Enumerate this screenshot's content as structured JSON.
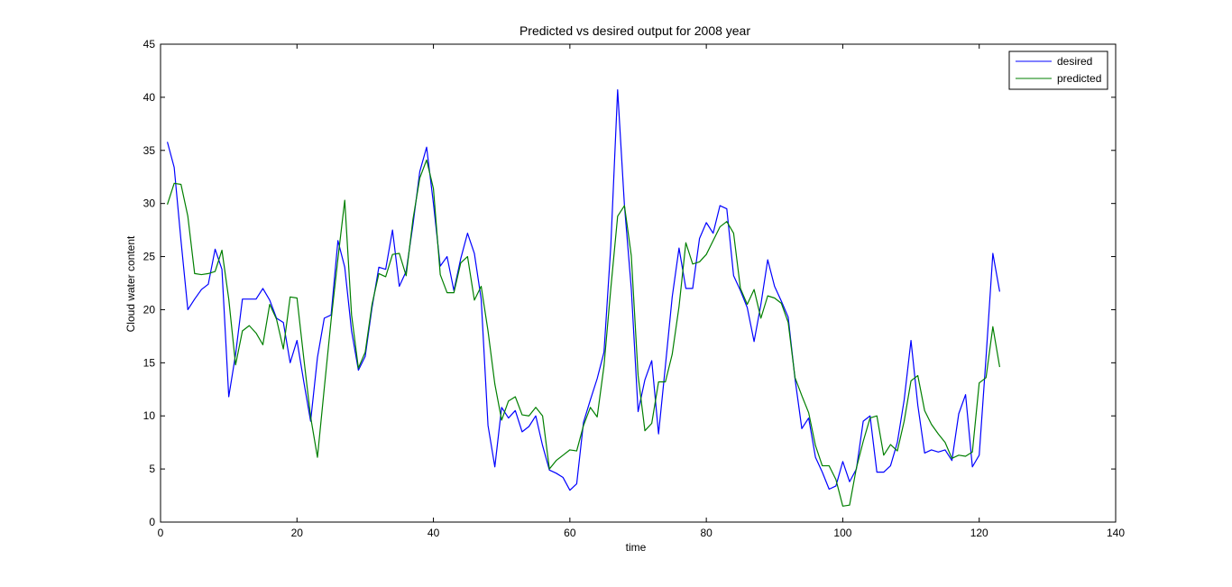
{
  "chart_data": {
    "type": "line",
    "title": "Predicted vs desired output for 2008 year",
    "xlabel": "time",
    "ylabel": "Cloud water content",
    "xlim": [
      0,
      140
    ],
    "ylim": [
      0,
      45
    ],
    "xticks": [
      0,
      20,
      40,
      60,
      80,
      100,
      120,
      140
    ],
    "yticks": [
      0,
      5,
      10,
      15,
      20,
      25,
      30,
      35,
      40,
      45
    ],
    "grid": false,
    "legend_position": "top-right",
    "series": [
      {
        "name": "desired",
        "color": "#0000ff",
        "x_start": 1,
        "values": [
          35.8,
          33.4,
          26.5,
          20.0,
          21.0,
          21.9,
          22.4,
          25.7,
          23.8,
          11.8,
          15.8,
          21.0,
          21.0,
          21.0,
          22.0,
          20.9,
          19.2,
          18.8,
          15.0,
          17.1,
          13.2,
          9.5,
          15.5,
          19.2,
          19.5,
          26.5,
          24.0,
          18.0,
          14.3,
          15.6,
          20.2,
          24.0,
          23.8,
          27.5,
          22.2,
          23.6,
          28.0,
          33.0,
          35.3,
          30.0,
          24.1,
          25.0,
          21.8,
          24.8,
          27.2,
          25.3,
          21.0,
          9.1,
          5.2,
          10.8,
          9.8,
          10.5,
          8.5,
          9.0,
          10.0,
          7.2,
          4.9,
          4.6,
          4.2,
          3.0,
          3.6,
          9.4,
          11.5,
          13.5,
          16.0,
          26.0,
          40.7,
          29.8,
          22.0,
          10.4,
          13.4,
          15.2,
          8.3,
          14.7,
          21.2,
          25.8,
          22.0,
          22.0,
          26.7,
          28.2,
          27.2,
          29.8,
          29.5,
          23.2,
          21.8,
          20.2,
          17.0,
          20.5,
          24.7,
          22.2,
          20.8,
          19.3,
          13.5,
          8.8,
          9.8,
          6.1,
          4.7,
          3.1,
          3.4,
          5.7,
          3.8,
          5.0,
          9.5,
          10.0,
          4.7,
          4.7,
          5.3,
          7.5,
          11.5,
          17.1,
          11.0,
          6.5,
          6.8,
          6.6,
          6.8,
          5.8,
          10.2,
          12.0,
          5.2,
          6.3,
          15.5,
          25.3,
          21.7
        ]
      },
      {
        "name": "predicted",
        "color": "#007f00",
        "x_start": 1,
        "values": [
          29.9,
          31.9,
          31.8,
          28.8,
          23.4,
          23.3,
          23.4,
          23.6,
          25.6,
          21.0,
          14.8,
          18.0,
          18.5,
          17.8,
          16.7,
          20.5,
          19.1,
          16.3,
          21.2,
          21.1,
          15.4,
          9.9,
          6.1,
          12.6,
          19.0,
          24.8,
          30.3,
          19.5,
          14.5,
          16.0,
          20.5,
          23.4,
          23.1,
          25.2,
          25.3,
          23.2,
          28.5,
          32.4,
          34.1,
          31.4,
          23.3,
          21.6,
          21.6,
          24.4,
          25.0,
          20.9,
          22.2,
          18.0,
          13.0,
          9.6,
          11.4,
          11.8,
          10.1,
          10.0,
          10.8,
          10.0,
          5.0,
          5.8,
          6.3,
          6.8,
          6.7,
          9.1,
          10.8,
          9.9,
          14.7,
          22.0,
          28.8,
          29.8,
          25.1,
          13.8,
          8.6,
          9.3,
          13.2,
          13.2,
          15.8,
          20.3,
          26.3,
          24.3,
          24.5,
          25.2,
          26.5,
          27.8,
          28.3,
          27.2,
          22.0,
          20.5,
          21.9,
          19.2,
          21.3,
          21.1,
          20.6,
          18.8,
          13.6,
          11.9,
          10.3,
          7.2,
          5.3,
          5.3,
          4.0,
          1.5,
          1.6,
          5.1,
          7.6,
          9.8,
          10.0,
          6.3,
          7.3,
          6.7,
          9.5,
          13.3,
          13.8,
          10.5,
          9.2,
          8.3,
          7.5,
          6.0,
          6.3,
          6.2,
          6.6,
          13.1,
          13.6,
          18.4,
          14.6
        ]
      }
    ]
  }
}
